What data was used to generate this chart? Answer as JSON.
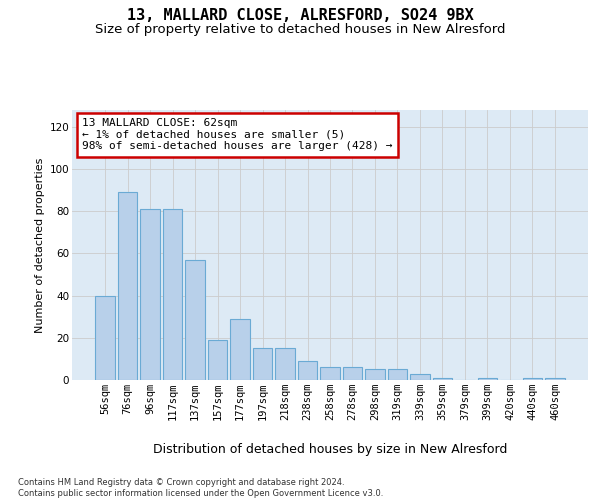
{
  "title": "13, MALLARD CLOSE, ALRESFORD, SO24 9BX",
  "subtitle": "Size of property relative to detached houses in New Alresford",
  "xlabel": "Distribution of detached houses by size in New Alresford",
  "ylabel": "Number of detached properties",
  "categories": [
    "56sqm",
    "76sqm",
    "96sqm",
    "117sqm",
    "137sqm",
    "157sqm",
    "177sqm",
    "197sqm",
    "218sqm",
    "238sqm",
    "258sqm",
    "278sqm",
    "298sqm",
    "319sqm",
    "339sqm",
    "359sqm",
    "379sqm",
    "399sqm",
    "420sqm",
    "440sqm",
    "460sqm"
  ],
  "values": [
    40,
    89,
    81,
    81,
    57,
    19,
    29,
    15,
    15,
    9,
    6,
    6,
    5,
    5,
    3,
    1,
    0,
    1,
    0,
    1,
    1
  ],
  "bar_color": "#b8d0ea",
  "bar_edge_color": "#6aaad4",
  "annotation_line1": "13 MALLARD CLOSE: 62sqm",
  "annotation_line2": "← 1% of detached houses are smaller (5)",
  "annotation_line3": "98% of semi-detached houses are larger (428) →",
  "annotation_box_facecolor": "#ffffff",
  "annotation_box_edgecolor": "#cc0000",
  "ylim": [
    0,
    128
  ],
  "yticks": [
    0,
    20,
    40,
    60,
    80,
    100,
    120
  ],
  "grid_color": "#cccccc",
  "plot_bg_color": "#ddeaf5",
  "footer_line1": "Contains HM Land Registry data © Crown copyright and database right 2024.",
  "footer_line2": "Contains public sector information licensed under the Open Government Licence v3.0.",
  "title_fontsize": 11,
  "subtitle_fontsize": 9.5,
  "ylabel_fontsize": 8,
  "xlabel_fontsize": 9,
  "tick_fontsize": 7.5,
  "annotation_fontsize": 8,
  "footer_fontsize": 6
}
